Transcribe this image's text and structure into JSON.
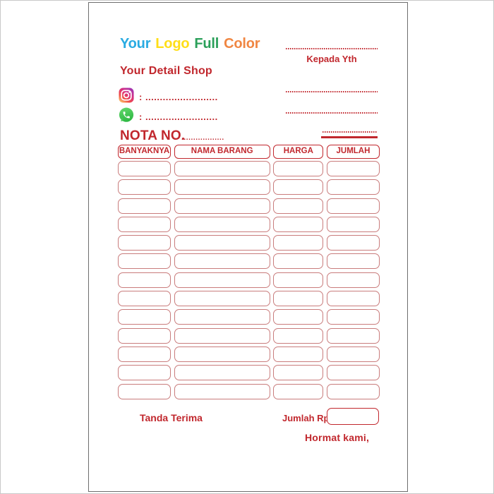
{
  "logo": {
    "words": [
      {
        "text": "Your",
        "color": "#29ABE2"
      },
      {
        "text": "Logo",
        "color": "#FFDE17"
      },
      {
        "text": "Full",
        "color": "#2BA05A"
      },
      {
        "text": "Color",
        "color": "#F08642"
      }
    ]
  },
  "header": {
    "kepada_yth": "Kepada Yth",
    "detail_shop": "Your Detail Shop",
    "contacts": [
      {
        "icon": "instagram-icon",
        "value": ": ........................."
      },
      {
        "icon": "whatsapp-icon",
        "value": ": ........................."
      }
    ],
    "nota_label": "NOTA NO.",
    "nota_dots": ".................."
  },
  "table": {
    "headers": [
      "BANYAKNYA",
      "NAMA BARANG",
      "HARGA",
      "JUMLAH"
    ],
    "empty_row_count": 13,
    "rows_are_blank": true
  },
  "footer": {
    "tanda_terima": "Tanda Terima",
    "jumlah_rp": "Jumlah Rp",
    "hormat_kami": "Hormat kami,"
  },
  "colors": {
    "red": "#C1272D",
    "row_border": "#C97C7C",
    "page_border": "#6E6E6E",
    "whatsapp_green_top": "#61D66A",
    "whatsapp_green_bottom": "#2BB741",
    "instagram_gradient": [
      "#FED373",
      "#F15245",
      "#D92E7F",
      "#9B36B7"
    ]
  }
}
